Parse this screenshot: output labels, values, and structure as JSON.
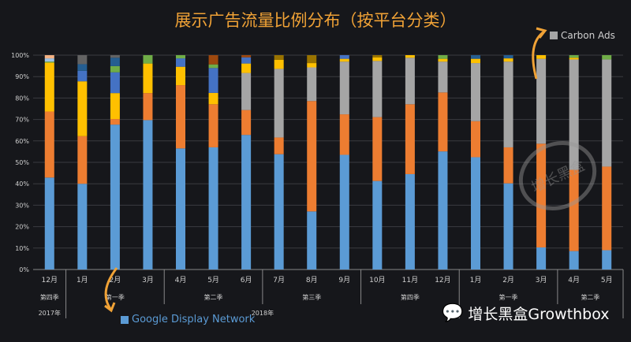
{
  "chart_data": {
    "type": "bar",
    "stacked": "percent",
    "title": "展示广告流量比例分布（按平台分类）",
    "ylim": [
      0,
      100
    ],
    "yticks": [
      "0%",
      "10%",
      "20%",
      "30%",
      "40%",
      "50%",
      "60%",
      "70%",
      "80%",
      "90%",
      "100%"
    ],
    "grid": true,
    "categories": [
      "12月",
      "1月",
      "2月",
      "3月",
      "4月",
      "5月",
      "6月",
      "7月",
      "8月",
      "9月",
      "10月",
      "11月",
      "12月",
      "1月",
      "2月",
      "3月",
      "4月",
      "5月"
    ],
    "quarter_groups": [
      {
        "label": "第四季",
        "span": 1
      },
      {
        "label": "第一季",
        "span": 3
      },
      {
        "label": "第二季",
        "span": 3
      },
      {
        "label": "第三季",
        "span": 3
      },
      {
        "label": "第四季",
        "span": 3
      },
      {
        "label": "第一季",
        "span": 3
      },
      {
        "label": "第二季",
        "span": 2
      }
    ],
    "year_groups": [
      {
        "label": "2017年",
        "span": 1
      },
      {
        "label": "2018年",
        "span": 12
      },
      {
        "label": "",
        "span": 5
      }
    ],
    "series": [
      {
        "name": "Google Display Network",
        "color": "#5b9bd5",
        "values": [
          42.9,
          40,
          67.6,
          69.7,
          56.5,
          57,
          62.8,
          53.8,
          27.1,
          53.5,
          41.3,
          44.5,
          55.1,
          52.4,
          40.2,
          10.3,
          8.6,
          9
        ]
      },
      {
        "color": "#ed7d31",
        "values": [
          30.8,
          22.2,
          2.6,
          12.6,
          29.5,
          20.1,
          11.6,
          7.8,
          51.5,
          18.9,
          29.8,
          32.6,
          27.5,
          16.8,
          16.8,
          48.4,
          37.9,
          39
        ]
      },
      {
        "name": "Carbon Ads",
        "color": "#a5a5a5",
        "values": [
          0,
          0,
          0,
          0,
          0,
          0,
          17.3,
          32,
          15.7,
          24.6,
          26.2,
          21.7,
          14.4,
          27.1,
          40,
          39.6,
          51.5,
          50
        ]
      },
      {
        "color": "#ffc000",
        "values": [
          22.8,
          25.6,
          12.1,
          13.8,
          8.6,
          5.3,
          4.4,
          4.2,
          2,
          1.3,
          1.7,
          1.2,
          1.3,
          2,
          1.5,
          1.7,
          0.8,
          0
        ]
      },
      {
        "color": "#4472c4",
        "values": [
          0,
          4.9,
          9.7,
          0,
          3.9,
          11.6,
          2.9,
          0,
          0,
          1.7,
          0,
          0,
          0,
          0,
          0,
          0,
          0,
          0
        ]
      },
      {
        "color": "#70ad47",
        "values": [
          0.5,
          0,
          2.9,
          3.9,
          1.5,
          1.7,
          0,
          0,
          0,
          0,
          0,
          0,
          1.7,
          0,
          0,
          0,
          1.2,
          2
        ]
      },
      {
        "color": "#255e91",
        "values": [
          0,
          3.1,
          3.9,
          0,
          0,
          0,
          0,
          0,
          0,
          0,
          0,
          0,
          0,
          1.7,
          1.5,
          0,
          0,
          0
        ]
      },
      {
        "color": "#9e480e",
        "values": [
          0,
          0,
          0,
          0,
          0,
          4.3,
          1,
          0,
          0,
          0,
          0,
          0,
          0,
          0,
          0,
          0,
          0,
          0
        ]
      },
      {
        "color": "#997300",
        "values": [
          0,
          0,
          0,
          0,
          0,
          0,
          0,
          2.2,
          3.7,
          0,
          1,
          0,
          0,
          0,
          0,
          0,
          0,
          0
        ]
      },
      {
        "color": "#636363",
        "values": [
          0,
          4.2,
          1.2,
          0,
          0,
          0,
          0,
          0,
          0,
          0,
          0,
          0,
          0,
          0,
          0,
          0,
          0,
          0
        ]
      },
      {
        "color": "#9dc3e6",
        "values": [
          1.5,
          0,
          0,
          0,
          0,
          0,
          0,
          0,
          0,
          0,
          0,
          0,
          0,
          0,
          0,
          0,
          0,
          0
        ]
      },
      {
        "color": "#f4b183",
        "values": [
          1.5,
          0,
          0,
          0,
          0,
          0,
          0,
          0,
          0,
          0,
          0,
          0,
          0,
          0,
          0,
          0,
          0,
          0
        ]
      }
    ],
    "annotations": [
      "Google Display Network",
      "Carbon Ads"
    ]
  },
  "watermark": "增长黑盒",
  "logo": "增长黑盒Growthbox",
  "accent": "#f0a236"
}
